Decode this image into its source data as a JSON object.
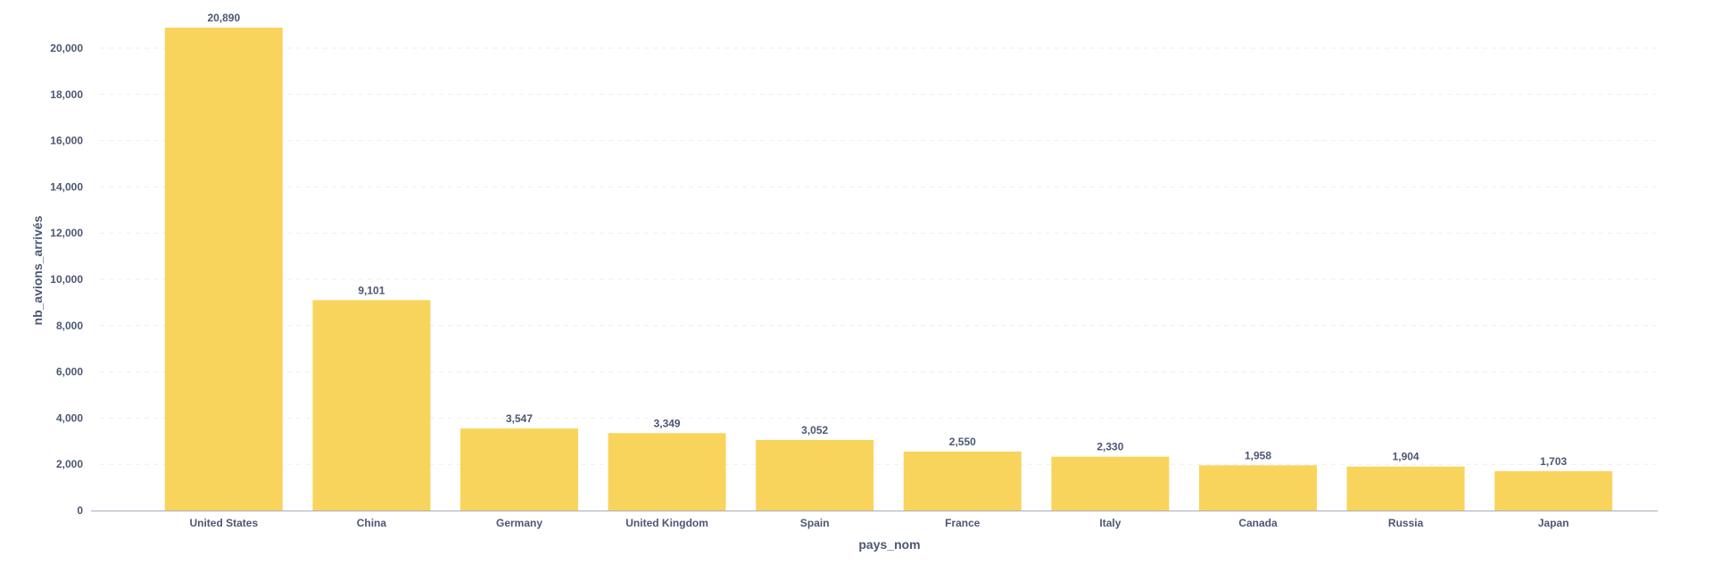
{
  "chart_data": {
    "type": "bar",
    "categories": [
      "United States",
      "China",
      "Germany",
      "United Kingdom",
      "Spain",
      "France",
      "Italy",
      "Canada",
      "Russia",
      "Japan"
    ],
    "values": [
      20890,
      9101,
      3547,
      3349,
      3052,
      2550,
      2330,
      1958,
      1904,
      1703
    ],
    "value_labels": [
      "20,890",
      "9,101",
      "3,547",
      "3,349",
      "3,052",
      "2,550",
      "2,330",
      "1,958",
      "1,904",
      "1,703"
    ],
    "xlabel": "pays_nom",
    "ylabel": "nb_avions_arrivés",
    "ylim": [
      0,
      20000
    ],
    "yticks": [
      0,
      2000,
      4000,
      6000,
      8000,
      10000,
      12000,
      14000,
      16000,
      18000,
      20000
    ],
    "ytick_labels": [
      "0",
      "2,000",
      "4,000",
      "6,000",
      "8,000",
      "10,000",
      "12,000",
      "14,000",
      "16,000",
      "18,000",
      "20,000"
    ],
    "grid": true,
    "legend": false,
    "colors": {
      "bar": "#f9d45c",
      "text": "#4c5773",
      "grid": "#eceef1",
      "axis": "#a8adb8"
    }
  }
}
